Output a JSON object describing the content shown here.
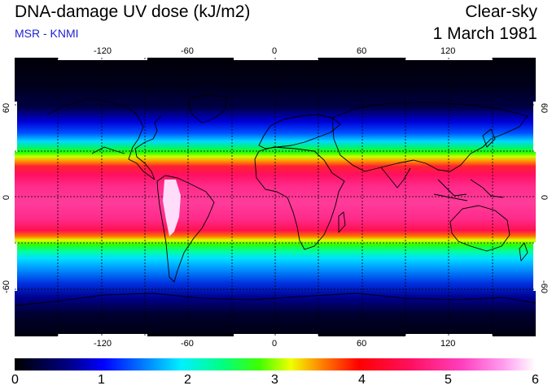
{
  "header": {
    "title": "DNA-damage UV dose (kJ/m2)",
    "subtitle": "MSR - KNMI",
    "sky": "Clear-sky",
    "date": "1 March 1981"
  },
  "map": {
    "lon_ticks": [
      "-120",
      "-60",
      "0",
      "60",
      "120"
    ],
    "lat_ticks": [
      "60",
      "0",
      "-60"
    ],
    "lat_ticks_right": [
      "60",
      "0",
      "-60"
    ],
    "colors": {
      "land_outline": "#000000",
      "gridline": "#000000"
    }
  },
  "colorbar": {
    "labels": [
      "0",
      "1",
      "2",
      "3",
      "4",
      "5",
      "6"
    ]
  }
}
